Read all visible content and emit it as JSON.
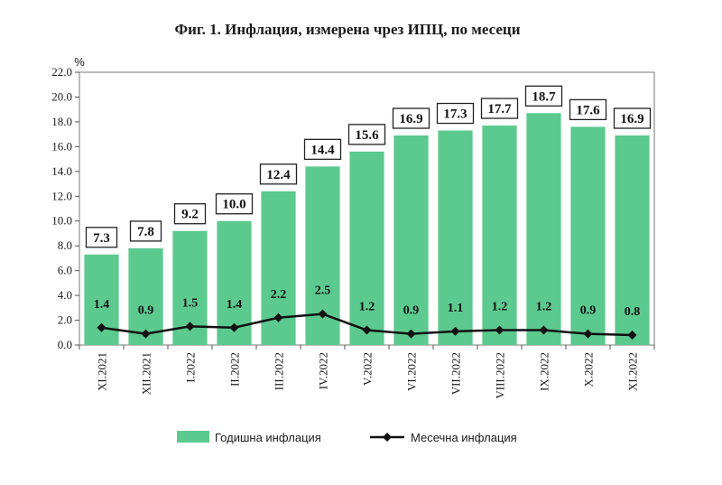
{
  "chart_data": {
    "type": "bar",
    "title": "Фиг. 1. Инфлация, измерена чрез ИПЦ, по месеци",
    "unit_label": "%",
    "ylim": [
      0,
      22
    ],
    "yticks": [
      "0.0",
      "2.0",
      "4.0",
      "6.0",
      "8.0",
      "10.0",
      "12.0",
      "14.0",
      "16.0",
      "18.0",
      "20.0",
      "22.0"
    ],
    "categories": [
      "XI.2021",
      "XII.2021",
      "I.2022",
      "II.2022",
      "III.2022",
      "IV.2022",
      "V.2022",
      "VI.2022",
      "VII.2022",
      "VIII.2022",
      "IX.2022",
      "X.2022",
      "XI.2022"
    ],
    "series": [
      {
        "name": "Годишна инфлация",
        "kind": "bar",
        "color": "#5cc98e",
        "values": [
          7.3,
          7.8,
          9.2,
          10.0,
          12.4,
          14.4,
          15.6,
          16.9,
          17.3,
          17.7,
          18.7,
          17.6,
          16.9
        ],
        "labels": [
          "7.3",
          "7.8",
          "9.2",
          "10.0",
          "12.4",
          "14.4",
          "15.6",
          "16.9",
          "17.3",
          "17.7",
          "18.7",
          "17.6",
          "16.9"
        ]
      },
      {
        "name": "Месечна инфлация",
        "kind": "line",
        "color": "#111111",
        "values": [
          1.4,
          0.9,
          1.5,
          1.4,
          2.2,
          2.5,
          1.2,
          0.9,
          1.1,
          1.2,
          1.2,
          0.9,
          0.8
        ],
        "labels": [
          "1.4",
          "0.9",
          "1.5",
          "1.4",
          "2.2",
          "2.5",
          "1.2",
          "0.9",
          "1.1",
          "1.2",
          "1.2",
          "0.9",
          "0.8"
        ]
      }
    ],
    "legend_position": "bottom",
    "grid": false
  }
}
